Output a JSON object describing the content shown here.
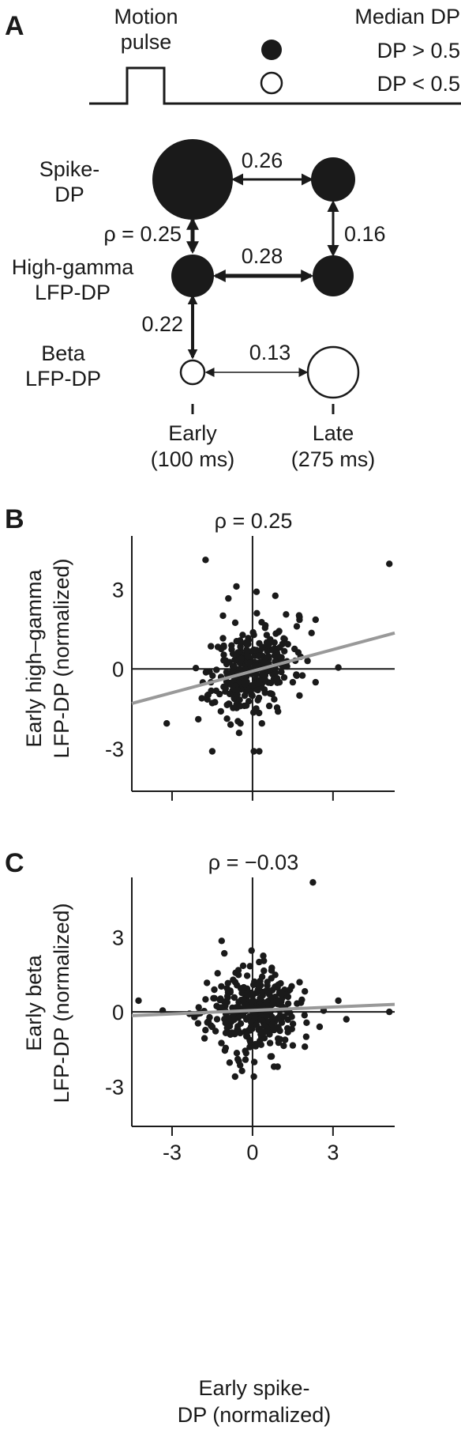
{
  "panel_a": {
    "letter": "A",
    "pulse_label_line1": "Motion",
    "pulse_label_line2": "pulse",
    "legend_title": "Median DP",
    "legend_filled": "DP > 0.5",
    "legend_open": "DP < 0.5",
    "rows": [
      {
        "line1": "Spike-",
        "line2": "DP"
      },
      {
        "line1": "High-gamma",
        "line2": "LFP-DP"
      },
      {
        "line1": "Beta",
        "line2": "LFP-DP"
      }
    ],
    "columns": [
      {
        "line1": "Early",
        "line2": "(100 ms)"
      },
      {
        "line1": "Late",
        "line2": "(275 ms)"
      }
    ],
    "nodes": [
      {
        "id": "spike-early",
        "filled": true
      },
      {
        "id": "spike-late",
        "filled": true
      },
      {
        "id": "hg-early",
        "filled": true
      },
      {
        "id": "hg-late",
        "filled": true
      },
      {
        "id": "beta-early",
        "filled": false
      },
      {
        "id": "beta-late",
        "filled": false
      }
    ],
    "edges": [
      {
        "from": "spike-early",
        "to": "spike-late",
        "label": "0.26"
      },
      {
        "from": "spike-late",
        "to": "hg-late",
        "label": "0.16"
      },
      {
        "from": "spike-early",
        "to": "hg-early",
        "label": "ρ = 0.25"
      },
      {
        "from": "hg-early",
        "to": "hg-late",
        "label": "0.28"
      },
      {
        "from": "hg-early",
        "to": "beta-early",
        "label": "0.22"
      },
      {
        "from": "beta-early",
        "to": "beta-late",
        "label": "0.13"
      }
    ]
  },
  "chart_data": [
    {
      "panel": "B",
      "type": "scatter",
      "title": "ρ = 0.25",
      "xlabel": "",
      "ylabel_line1": "Early high–gamma",
      "ylabel_line2": "LFP-DP (normalized)",
      "xlim": [
        -4.5,
        5.3
      ],
      "ylim": [
        -4.6,
        5.0
      ],
      "xticks": [
        "-3",
        "0",
        "3"
      ],
      "yticks": [
        "-3",
        "0",
        "3"
      ],
      "fit_line": {
        "x0": -4.5,
        "y0": -1.3,
        "x1": 5.3,
        "y1": 1.35
      },
      "point_seed": 11,
      "point_count": 300,
      "points_note_free": true,
      "points": [
        [
          -3.2,
          -2.05
        ],
        [
          -1.75,
          4.1
        ],
        [
          -1.5,
          -3.1
        ],
        [
          -1.4,
          -1.25
        ],
        [
          -1.55,
          -0.5
        ],
        [
          -1.6,
          -0.1
        ],
        [
          -0.6,
          3.1
        ],
        [
          -0.9,
          2.65
        ],
        [
          0.15,
          2.9
        ],
        [
          0.85,
          2.75
        ],
        [
          -1.1,
          2.0
        ],
        [
          -1.55,
          0.85
        ],
        [
          -1.1,
          1.15
        ],
        [
          1.25,
          2.05
        ],
        [
          1.75,
          1.95
        ],
        [
          1.65,
          1.6
        ],
        [
          2.05,
          0.3
        ],
        [
          2.2,
          1.35
        ],
        [
          2.35,
          -0.5
        ],
        [
          3.2,
          0.05
        ],
        [
          5.1,
          3.95
        ],
        [
          0.05,
          -3.1
        ],
        [
          0.25,
          -3.1
        ],
        [
          -0.45,
          -2.05
        ],
        [
          0.35,
          -2.05
        ],
        [
          -0.55,
          -1.25
        ],
        [
          1.5,
          -0.5
        ],
        [
          1.75,
          -1.0
        ],
        [
          0.95,
          -1.6
        ],
        [
          2.35,
          1.85
        ]
      ]
    },
    {
      "panel": "C",
      "type": "scatter",
      "title": "ρ = −0.03",
      "xlabel_line1": "Early spike-",
      "xlabel_line2": "DP (normalized)",
      "ylabel_line1": "Early beta",
      "ylabel_line2": "LFP-DP (normalized)",
      "xlim": [
        -4.5,
        5.3
      ],
      "ylim": [
        -4.6,
        5.4
      ],
      "xticks": [
        "-3",
        "0",
        "3"
      ],
      "yticks": [
        "-3",
        "0",
        "3"
      ],
      "fit_line": {
        "x0": -4.5,
        "y0": -0.15,
        "x1": 5.3,
        "y1": 0.3
      },
      "point_seed": 23,
      "point_count": 320,
      "points": [
        [
          -4.25,
          0.45
        ],
        [
          -3.35,
          0.05
        ],
        [
          -1.15,
          2.85
        ],
        [
          -1.05,
          2.35
        ],
        [
          -1.3,
          1.55
        ],
        [
          -1.75,
          0.5
        ],
        [
          -1.55,
          -0.55
        ],
        [
          -1.0,
          -1.45
        ],
        [
          -0.65,
          -2.6
        ],
        [
          0.05,
          -2.6
        ],
        [
          -0.35,
          1.85
        ],
        [
          0.4,
          2.25
        ],
        [
          2.25,
          5.2
        ],
        [
          2.65,
          0.05
        ],
        [
          3.2,
          0.45
        ],
        [
          3.5,
          -0.3
        ],
        [
          5.1,
          0.0
        ],
        [
          2.0,
          -1.0
        ],
        [
          1.5,
          -1.35
        ],
        [
          1.95,
          -1.4
        ],
        [
          0.7,
          1.35
        ],
        [
          -0.2,
          1.45
        ],
        [
          1.1,
          0.55
        ],
        [
          -1.95,
          -0.05
        ],
        [
          -0.95,
          0.95
        ],
        [
          2.5,
          -0.6
        ],
        [
          0.8,
          -2.2
        ],
        [
          -0.55,
          -1.9
        ],
        [
          0.55,
          1.05
        ],
        [
          1.35,
          0.85
        ]
      ]
    }
  ]
}
